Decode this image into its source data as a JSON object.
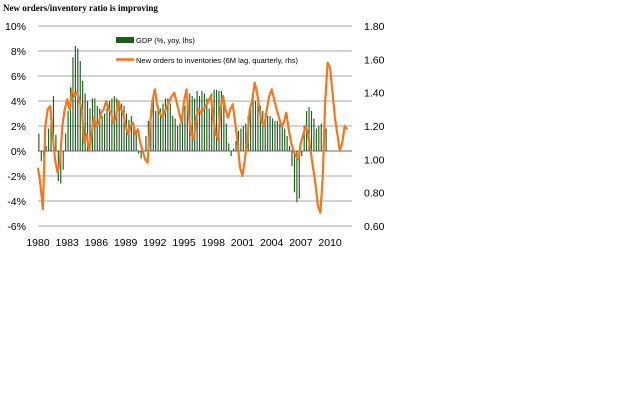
{
  "chart_data": {
    "type": "bar+line",
    "title": "New orders/inventory ratio is improving",
    "left_axis": {
      "ticks": [
        "10%",
        "8%",
        "6%",
        "4%",
        "2%",
        "0%",
        "-2%",
        "-4%",
        "-6%"
      ],
      "values": [
        10,
        8,
        6,
        4,
        2,
        0,
        -2,
        -4,
        -6
      ],
      "ylim": [
        -6,
        10
      ]
    },
    "right_axis": {
      "ticks": [
        "1.80",
        "1.60",
        "1.40",
        "1.20",
        "1.00",
        "0.80",
        "0.60"
      ],
      "values": [
        1.8,
        1.6,
        1.4,
        1.2,
        1.0,
        0.8,
        0.6
      ],
      "ylim": [
        0.6,
        1.8
      ]
    },
    "x_ticks": [
      "1980",
      "1983",
      "1986",
      "1989",
      "1992",
      "1995",
      "1998",
      "2001",
      "2004",
      "2007",
      "2010"
    ],
    "x_tick_years": [
      1980,
      1983,
      1986,
      1989,
      1992,
      1995,
      1998,
      2001,
      2004,
      2007,
      2010
    ],
    "xlim": [
      1980,
      2012.25
    ],
    "legend": [
      {
        "name": "GDP (%, yoy, lhs)",
        "color": "#1e5b1e",
        "kind": "bar"
      },
      {
        "name": "New orders to inventories (6M lag, quarterly, rhs)",
        "color": "#f07820",
        "kind": "line"
      }
    ],
    "series": [
      {
        "name": "GDP (%, yoy, lhs)",
        "axis": "left",
        "x_start": 1980.0,
        "x_step": 0.25,
        "values": [
          1.4,
          -0.8,
          -0.5,
          0.4,
          1.8,
          3.5,
          4.4,
          1.3,
          -2.4,
          -2.6,
          -1.5,
          1.4,
          3.2,
          5.1,
          7.5,
          8.4,
          8.2,
          7.2,
          5.6,
          4.6,
          4.0,
          3.4,
          4.2,
          4.2,
          3.6,
          3.4,
          2.8,
          3.0,
          3.4,
          4.0,
          4.2,
          4.4,
          4.2,
          4.0,
          3.8,
          3.6,
          3.0,
          2.5,
          2.8,
          2.2,
          1.4,
          -0.2,
          -0.6,
          -0.4,
          1.2,
          2.4,
          3.2,
          4.2,
          3.2,
          3.6,
          3.4,
          3.8,
          4.2,
          4.2,
          3.8,
          2.8,
          2.6,
          2.0,
          2.2,
          2.4,
          3.6,
          4.2,
          4.6,
          4.4,
          4.2,
          4.8,
          4.4,
          4.8,
          4.6,
          4.2,
          3.4,
          4.6,
          4.9,
          4.9,
          4.8,
          4.8,
          4.0,
          2.2,
          0.6,
          -0.4,
          0.2,
          0.8,
          1.6,
          1.8,
          2.0,
          2.2,
          2.8,
          3.5,
          4.4,
          4.0,
          3.8,
          3.6,
          3.2,
          3.0,
          2.8,
          2.8,
          2.6,
          2.4,
          2.4,
          2.2,
          2.0,
          1.8,
          1.2,
          0.4,
          -1.2,
          -3.3,
          -4.1,
          -3.8,
          -0.4,
          2.0,
          3.2,
          3.5,
          3.2,
          2.6,
          1.8,
          2.0,
          2.2,
          1.6,
          1.8
        ]
      },
      {
        "name": "New orders to inventories (6M lag, quarterly, rhs)",
        "axis": "right",
        "points": [
          [
            1980.0,
            0.95
          ],
          [
            1980.25,
            0.85
          ],
          [
            1980.5,
            0.7
          ],
          [
            1980.75,
            1.2
          ],
          [
            1981.0,
            1.3
          ],
          [
            1981.25,
            1.32
          ],
          [
            1981.5,
            1.15
          ],
          [
            1981.75,
            1.0
          ],
          [
            1982.0,
            0.92
          ],
          [
            1982.25,
            0.98
          ],
          [
            1982.5,
            1.2
          ],
          [
            1982.75,
            1.3
          ],
          [
            1983.0,
            1.36
          ],
          [
            1983.25,
            1.3
          ],
          [
            1983.5,
            1.42
          ],
          [
            1983.75,
            1.38
          ],
          [
            1984.0,
            1.4
          ],
          [
            1984.25,
            1.35
          ],
          [
            1984.5,
            1.3
          ],
          [
            1984.75,
            1.1
          ],
          [
            1985.0,
            1.15
          ],
          [
            1985.25,
            1.05
          ],
          [
            1985.5,
            1.15
          ],
          [
            1985.75,
            1.25
          ],
          [
            1986.0,
            1.2
          ],
          [
            1986.25,
            1.22
          ],
          [
            1986.5,
            1.28
          ],
          [
            1986.75,
            1.3
          ],
          [
            1987.0,
            1.35
          ],
          [
            1987.25,
            1.3
          ],
          [
            1987.5,
            1.28
          ],
          [
            1987.75,
            1.22
          ],
          [
            1988.0,
            1.25
          ],
          [
            1988.25,
            1.35
          ],
          [
            1988.5,
            1.3
          ],
          [
            1988.75,
            1.28
          ],
          [
            1989.0,
            1.2
          ],
          [
            1989.25,
            1.15
          ],
          [
            1989.5,
            1.2
          ],
          [
            1989.75,
            1.22
          ],
          [
            1990.0,
            1.15
          ],
          [
            1990.25,
            1.18
          ],
          [
            1990.5,
            1.1
          ],
          [
            1990.75,
            1.05
          ],
          [
            1991.0,
            1.0
          ],
          [
            1991.25,
            0.98
          ],
          [
            1991.5,
            1.2
          ],
          [
            1991.75,
            1.35
          ],
          [
            1992.0,
            1.42
          ],
          [
            1992.25,
            1.32
          ],
          [
            1992.5,
            1.28
          ],
          [
            1992.75,
            1.25
          ],
          [
            1993.0,
            1.28
          ],
          [
            1993.25,
            1.32
          ],
          [
            1993.5,
            1.35
          ],
          [
            1993.75,
            1.38
          ],
          [
            1994.0,
            1.4
          ],
          [
            1994.25,
            1.34
          ],
          [
            1994.5,
            1.28
          ],
          [
            1994.75,
            1.22
          ],
          [
            1995.0,
            1.35
          ],
          [
            1995.25,
            1.42
          ],
          [
            1995.5,
            1.25
          ],
          [
            1995.75,
            1.15
          ],
          [
            1996.0,
            1.12
          ],
          [
            1996.25,
            1.25
          ],
          [
            1996.5,
            1.3
          ],
          [
            1996.75,
            1.28
          ],
          [
            1997.0,
            1.3
          ],
          [
            1997.25,
            1.32
          ],
          [
            1997.5,
            1.35
          ],
          [
            1997.75,
            1.38
          ],
          [
            1998.0,
            1.25
          ],
          [
            1998.25,
            1.15
          ],
          [
            1998.5,
            1.12
          ],
          [
            1998.75,
            1.3
          ],
          [
            1999.0,
            1.38
          ],
          [
            1999.25,
            1.3
          ],
          [
            1999.5,
            1.25
          ],
          [
            1999.75,
            1.3
          ],
          [
            2000.0,
            1.33
          ],
          [
            2000.25,
            1.22
          ],
          [
            2000.5,
            1.1
          ],
          [
            2000.75,
            0.95
          ],
          [
            2001.0,
            0.9
          ],
          [
            2001.25,
            1.0
          ],
          [
            2001.5,
            1.12
          ],
          [
            2001.75,
            1.3
          ],
          [
            2002.0,
            1.35
          ],
          [
            2002.25,
            1.46
          ],
          [
            2002.5,
            1.4
          ],
          [
            2002.75,
            1.3
          ],
          [
            2003.0,
            1.22
          ],
          [
            2003.25,
            1.2
          ],
          [
            2003.5,
            1.3
          ],
          [
            2003.75,
            1.38
          ],
          [
            2004.0,
            1.42
          ],
          [
            2004.25,
            1.36
          ],
          [
            2004.5,
            1.3
          ],
          [
            2004.75,
            1.25
          ],
          [
            2005.0,
            1.2
          ],
          [
            2005.25,
            1.22
          ],
          [
            2005.5,
            1.28
          ],
          [
            2005.75,
            1.18
          ],
          [
            2006.0,
            1.1
          ],
          [
            2006.25,
            1.05
          ],
          [
            2006.5,
            1.02
          ],
          [
            2006.75,
            1.0
          ],
          [
            2007.0,
            1.1
          ],
          [
            2007.25,
            1.15
          ],
          [
            2007.5,
            1.2
          ],
          [
            2007.75,
            1.15
          ],
          [
            2008.0,
            1.05
          ],
          [
            2008.25,
            0.95
          ],
          [
            2008.5,
            0.85
          ],
          [
            2008.75,
            0.72
          ],
          [
            2009.0,
            0.68
          ],
          [
            2009.25,
            0.9
          ],
          [
            2009.5,
            1.35
          ],
          [
            2009.75,
            1.58
          ],
          [
            2010.0,
            1.55
          ],
          [
            2010.25,
            1.4
          ],
          [
            2010.5,
            1.25
          ],
          [
            2010.75,
            1.15
          ],
          [
            2011.0,
            1.05
          ],
          [
            2011.25,
            1.1
          ],
          [
            2011.5,
            1.2
          ],
          [
            2011.75,
            1.18
          ]
        ]
      }
    ]
  }
}
